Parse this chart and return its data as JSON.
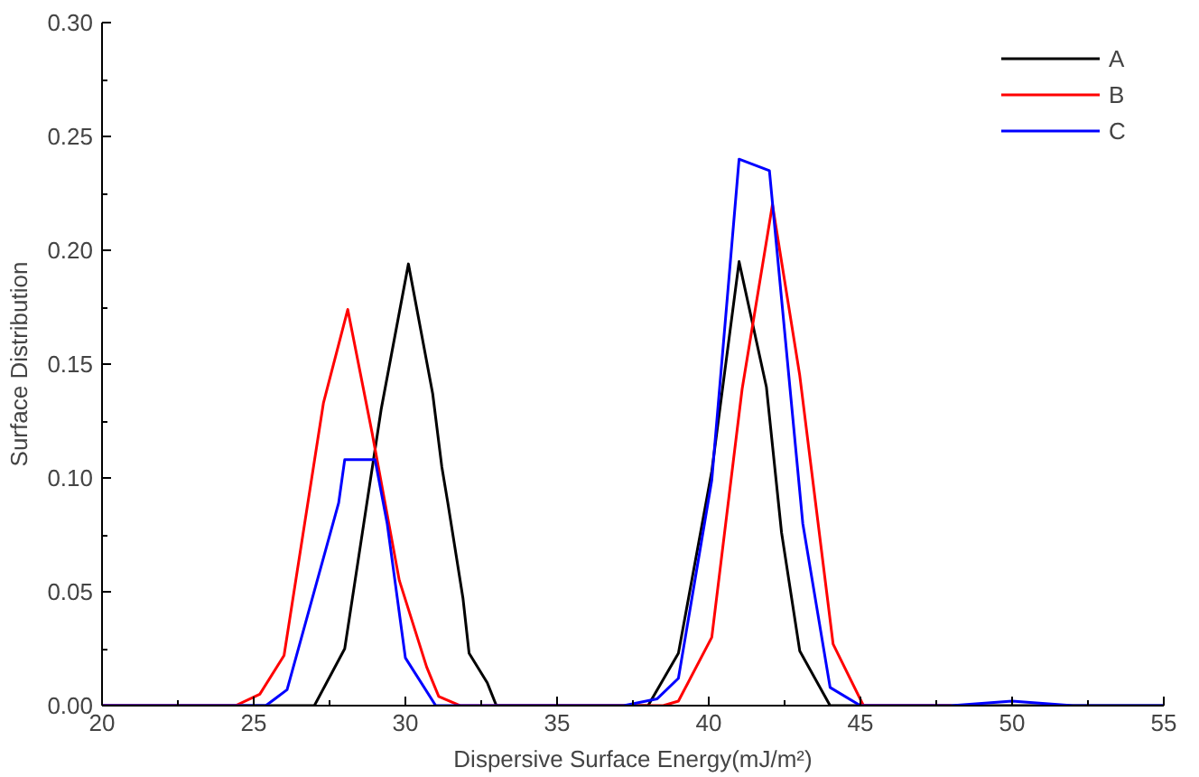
{
  "chart_data": {
    "type": "line",
    "xlabel": "Dispersive Surface Energy(mJ/m²)",
    "ylabel": "Surface Distribution",
    "xlim": [
      20,
      55
    ],
    "ylim": [
      0,
      0.3
    ],
    "xticks": [
      20,
      25,
      30,
      35,
      40,
      45,
      50,
      55
    ],
    "yticks": [
      {
        "value": 0,
        "label": "0.00"
      },
      {
        "value": 0.05,
        "label": "0.05"
      },
      {
        "value": 0.1,
        "label": "0.10"
      },
      {
        "value": 0.15,
        "label": "0.15"
      },
      {
        "value": 0.2,
        "label": "0.20"
      },
      {
        "value": 0.25,
        "label": "0.25"
      },
      {
        "value": 0.3,
        "label": "0.30"
      }
    ],
    "grid": false,
    "legend": "top right",
    "marker": "none",
    "line_style": "solid",
    "series": [
      {
        "name": "A",
        "color": "#000000",
        "x": [
          20,
          27.0,
          28.0,
          29.2,
          30.1,
          30.9,
          31.2,
          31.4,
          31.9,
          32.1,
          32.7,
          33.0,
          38.0,
          39.0,
          40.1,
          41.0,
          41.9,
          42.4,
          43.0,
          44.0,
          55
        ],
        "values": [
          0,
          0,
          0.025,
          0.13,
          0.194,
          0.137,
          0.105,
          0.089,
          0.047,
          0.023,
          0.01,
          0,
          0,
          0.023,
          0.103,
          0.195,
          0.14,
          0.076,
          0.024,
          0,
          0
        ]
      },
      {
        "name": "B",
        "color": "#ff0000",
        "x": [
          20,
          24.4,
          25.2,
          26.0,
          27.3,
          28.1,
          28.9,
          29.8,
          30.7,
          31.1,
          31.8,
          38.5,
          39.0,
          40.1,
          41.1,
          42.1,
          43.0,
          44.1,
          45.1,
          48
        ],
        "values": [
          0,
          0,
          0.005,
          0.022,
          0.133,
          0.174,
          0.12,
          0.055,
          0.017,
          0.004,
          0,
          0,
          0.002,
          0.03,
          0.139,
          0.22,
          0.145,
          0.027,
          0,
          0
        ]
      },
      {
        "name": "C",
        "color": "#0000ff",
        "x": [
          20,
          25.4,
          25.7,
          26.1,
          27.8,
          28.0,
          29.0,
          29.4,
          30.0,
          31.0,
          37.2,
          38.3,
          39.0,
          40.1,
          41.0,
          42.0,
          43.1,
          44.0,
          45.0,
          48,
          50,
          52,
          55
        ],
        "values": [
          0,
          0,
          0.003,
          0.007,
          0.089,
          0.108,
          0.108,
          0.08,
          0.021,
          0,
          0,
          0.003,
          0.012,
          0.099,
          0.24,
          0.235,
          0.08,
          0.008,
          0,
          0,
          0.002,
          0,
          0
        ]
      }
    ]
  }
}
